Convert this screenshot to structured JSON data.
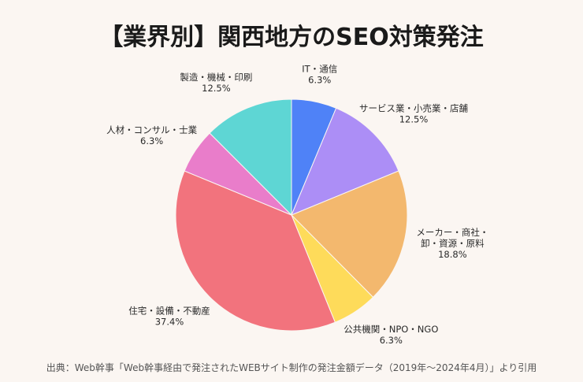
{
  "chart_data": {
    "type": "pie",
    "title": "【業界別】関西地方のSEO対策発注",
    "slices": [
      {
        "label": [
          "IT・通信"
        ],
        "value": 6.3,
        "value_label": "6.3%",
        "color": "#4f82f7"
      },
      {
        "label": [
          "サービス業・小売業・店舗"
        ],
        "value": 12.5,
        "value_label": "12.5%",
        "color": "#ac8ef6"
      },
      {
        "label": [
          "メーカー・商社・",
          "卸・資源・原料"
        ],
        "value": 18.8,
        "value_label": "18.8%",
        "color": "#f3b86e"
      },
      {
        "label": [
          "公共機関・NPO・NGO"
        ],
        "value": 6.3,
        "value_label": "6.3%",
        "color": "#fedb5a"
      },
      {
        "label": [
          "住宅・設備・不動産"
        ],
        "value": 37.4,
        "value_label": "37.4%",
        "color": "#f2737d"
      },
      {
        "label": [
          "人材・コンサル・士業"
        ],
        "value": 6.3,
        "value_label": "6.3%",
        "color": "#e97dca"
      },
      {
        "label": [
          "製造・機械・印刷"
        ],
        "value": 12.5,
        "value_label": "12.5%",
        "color": "#5ed6d4"
      }
    ],
    "start_angle": "12 o'clock",
    "direction": "clockwise"
  },
  "source": "出典：Web幹事「Web幹事経由で発注されたWEBサイト制作の発注金額データ（2019年〜2024年4月）」より引用"
}
